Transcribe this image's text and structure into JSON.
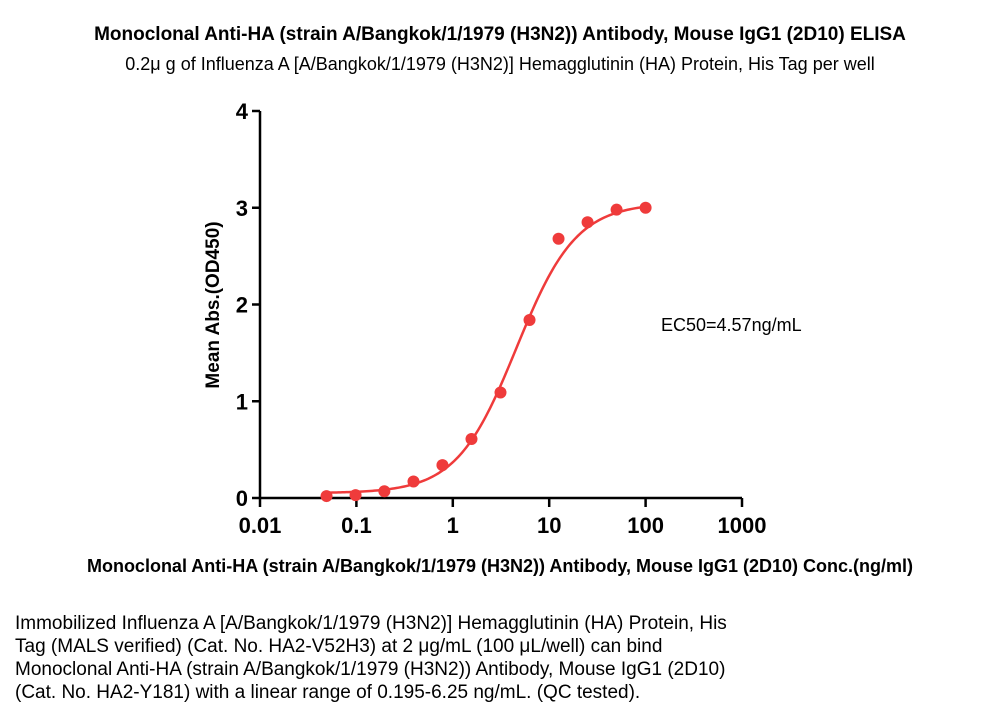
{
  "chart_data": {
    "type": "scatter",
    "title": "Monoclonal Anti-HA (strain A/Bangkok/1/1979 (H3N2)) Antibody, Mouse IgG1 (2D10) ELISA",
    "subtitle": "0.2μ g of Influenza A [A/Bangkok/1/1979 (H3N2)] Hemagglutinin (HA) Protein, His Tag per well",
    "xlabel": "Monoclonal Anti-HA (strain A/Bangkok/1/1979 (H3N2)) Antibody, Mouse IgG1 (2D10) Conc.(ng/ml)",
    "ylabel": "Mean Abs.(OD450)",
    "x_scale": "log",
    "xlim": [
      0.01,
      1000
    ],
    "ylim": [
      0,
      4
    ],
    "x_ticks": [
      "0.01",
      "0.1",
      "1",
      "10",
      "100",
      "1000"
    ],
    "y_ticks": [
      "0",
      "1",
      "2",
      "3",
      "4"
    ],
    "grid": false,
    "color": "#ef3b3b",
    "annotation": "EC50=4.57ng/mL",
    "series": [
      {
        "x": [
          0.049,
          0.098,
          0.195,
          0.391,
          0.781,
          1.563,
          3.125,
          6.25,
          12.5,
          25,
          50,
          100
        ],
        "y": [
          0.02,
          0.03,
          0.07,
          0.17,
          0.34,
          0.61,
          1.09,
          1.84,
          2.68,
          2.85,
          2.98,
          3.0
        ]
      }
    ],
    "fit": {
      "type": "4PL",
      "bottom": 0.05,
      "top": 3.05,
      "ec50": 4.57,
      "hill": 1.4
    }
  },
  "caption_lines": [
    "Immobilized Influenza A [A/Bangkok/1/1979 (H3N2)] Hemagglutinin (HA) Protein, His",
    "Tag (MALS verified) (Cat. No. HA2-V52H3) at 2 μg/mL (100 μL/well) can bind",
    "Monoclonal Anti-HA (strain A/Bangkok/1/1979 (H3N2)) Antibody, Mouse IgG1 (2D10)",
    "(Cat. No. HA2-Y181) with a linear range of 0.195-6.25 ng/mL. (QC tested)."
  ]
}
